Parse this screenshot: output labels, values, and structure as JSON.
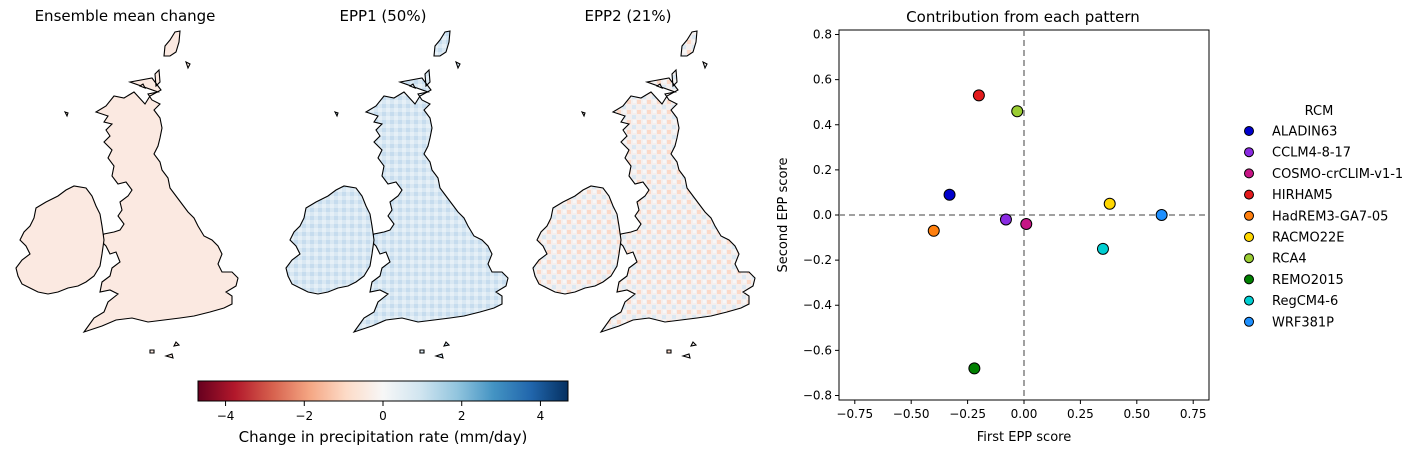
{
  "maps": {
    "panel1_title": "Ensemble mean change",
    "panel2_title": "EPP1 (50%)",
    "panel3_title": "EPP2 (21%)",
    "panel1_fill": "#fbe9e1",
    "panel2_fill": "#d9e8f3",
    "panel3_fill": "#f4efee"
  },
  "colorbar": {
    "label": "Change in precipitation rate (mm/day)",
    "colormap": "RdBu",
    "min": -4.7,
    "max": 4.7,
    "ticks": [
      "−4",
      "−2",
      "0",
      "2",
      "4"
    ],
    "tick_values": [
      -4,
      -2,
      0,
      2,
      4
    ],
    "stops": [
      "#67001f",
      "#b2182b",
      "#d6604d",
      "#f4a582",
      "#fddbc7",
      "#f7f7f7",
      "#d1e5f0",
      "#92c5de",
      "#4393c3",
      "#2166ac",
      "#053061"
    ]
  },
  "chart_data": {
    "type": "scatter",
    "title": "Contribution from each pattern",
    "xlabel": "First EPP score",
    "ylabel": "Second EPP score",
    "xlim": [
      -0.82,
      0.82
    ],
    "ylim": [
      -0.82,
      0.82
    ],
    "xticks": [
      -0.75,
      -0.5,
      -0.25,
      0.0,
      0.25,
      0.5,
      0.75
    ],
    "xtick_labels": [
      "−0.75",
      "−0.50",
      "−0.25",
      "0.00",
      "0.25",
      "0.50",
      "0.75"
    ],
    "yticks": [
      0.8,
      0.6,
      0.4,
      0.2,
      0.0,
      -0.2,
      -0.4,
      -0.6,
      -0.8
    ],
    "ytick_labels": [
      "0.8",
      "0.6",
      "0.4",
      "0.2",
      "0.0",
      "−0.2",
      "−0.4",
      "−0.6",
      "−0.8"
    ],
    "reference_lines": {
      "x": 0,
      "y": 0
    },
    "grid": false,
    "legend_title": "RCM",
    "legend_position": "right",
    "series": [
      {
        "name": "ALADIN63",
        "x": -0.33,
        "y": 0.09,
        "color": "#0000cd"
      },
      {
        "name": "CCLM4-8-17",
        "x": -0.08,
        "y": -0.02,
        "color": "#8a2be2"
      },
      {
        "name": "COSMO-crCLIM-v1-1",
        "x": 0.01,
        "y": -0.04,
        "color": "#c71585"
      },
      {
        "name": "HIRHAM5",
        "x": -0.2,
        "y": 0.53,
        "color": "#e31a1c"
      },
      {
        "name": "HadREM3-GA7-05",
        "x": -0.4,
        "y": -0.07,
        "color": "#ff7f0e"
      },
      {
        "name": "RACMO22E",
        "x": 0.38,
        "y": 0.05,
        "color": "#ffd700"
      },
      {
        "name": "RCA4",
        "x": -0.03,
        "y": 0.46,
        "color": "#9acd32"
      },
      {
        "name": "REMO2015",
        "x": -0.22,
        "y": -0.68,
        "color": "#008000"
      },
      {
        "name": "RegCM4-6",
        "x": 0.35,
        "y": -0.15,
        "color": "#00ced1"
      },
      {
        "name": "WRF381P",
        "x": 0.61,
        "y": 0.0,
        "color": "#1e90ff"
      }
    ]
  }
}
